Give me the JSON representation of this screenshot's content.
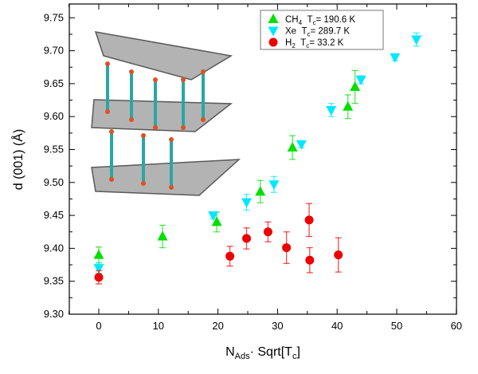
{
  "chart_data": {
    "type": "scatter",
    "xlabel": "N_Ads· Sqrt[T_c]",
    "xlabel_parts": {
      "main": "N",
      "sub": "Ads",
      "mid": "· Sqrt[T",
      "sub2": "c",
      "end": "]"
    },
    "ylabel": "d (001) (Å)",
    "xlim": [
      -5,
      60
    ],
    "ylim": [
      9.3,
      9.77
    ],
    "xticks": [
      "0",
      "10",
      "20",
      "30",
      "40",
      "50",
      "60"
    ],
    "yticks": [
      "9.30",
      "9.35",
      "9.40",
      "9.45",
      "9.50",
      "9.55",
      "9.60",
      "9.65",
      "9.70",
      "9.75"
    ],
    "grid": false,
    "legend_position": "top-right",
    "series": [
      {
        "name": "CH4  Tc= 190.6 K",
        "legend": {
          "a": "CH",
          "sub": "4",
          "b": "  T",
          "sub2": "c",
          "c": "= 190.6 K"
        },
        "marker": "triangle-up",
        "color": "#00e000",
        "x": [
          0,
          10.7,
          19.8,
          27.1,
          32.5,
          41.8,
          43.0
        ],
        "y": [
          9.39,
          9.418,
          9.44,
          9.486,
          9.553,
          9.615,
          9.645
        ],
        "err": [
          0.012,
          0.017,
          0.015,
          0.017,
          0.018,
          0.018,
          0.025
        ]
      },
      {
        "name": "Xe  Tc= 289.7 K",
        "legend": {
          "a": "Xe",
          "sub": "",
          "b": "  T",
          "sub2": "c",
          "c": "= 289.7 K"
        },
        "marker": "triangle-down",
        "color": "#00e8ff",
        "x": [
          0,
          19.2,
          24.8,
          29.4,
          34.0,
          39.0,
          44.0,
          49.7,
          53.3
        ],
        "y": [
          9.37,
          9.45,
          9.47,
          9.497,
          9.558,
          9.61,
          9.656,
          9.69,
          9.717
        ],
        "err": [
          0.008,
          0.005,
          0.012,
          0.012,
          0.005,
          0.01,
          0.006,
          0.005,
          0.01
        ]
      },
      {
        "name": "H2  Tc= 33.2 K",
        "legend": {
          "a": "H",
          "sub": "2",
          "b": "  T",
          "sub2": "c",
          "c": "= 33.2 K"
        },
        "marker": "circle",
        "color": "#ee0000",
        "x": [
          0,
          22.0,
          24.8,
          28.4,
          31.5,
          35.3,
          35.4,
          40.2
        ],
        "y": [
          9.356,
          9.388,
          9.415,
          9.425,
          9.401,
          9.443,
          9.382,
          9.39
        ],
        "err": [
          0.01,
          0.015,
          0.016,
          0.015,
          0.024,
          0.025,
          0.019,
          0.026
        ]
      }
    ]
  }
}
